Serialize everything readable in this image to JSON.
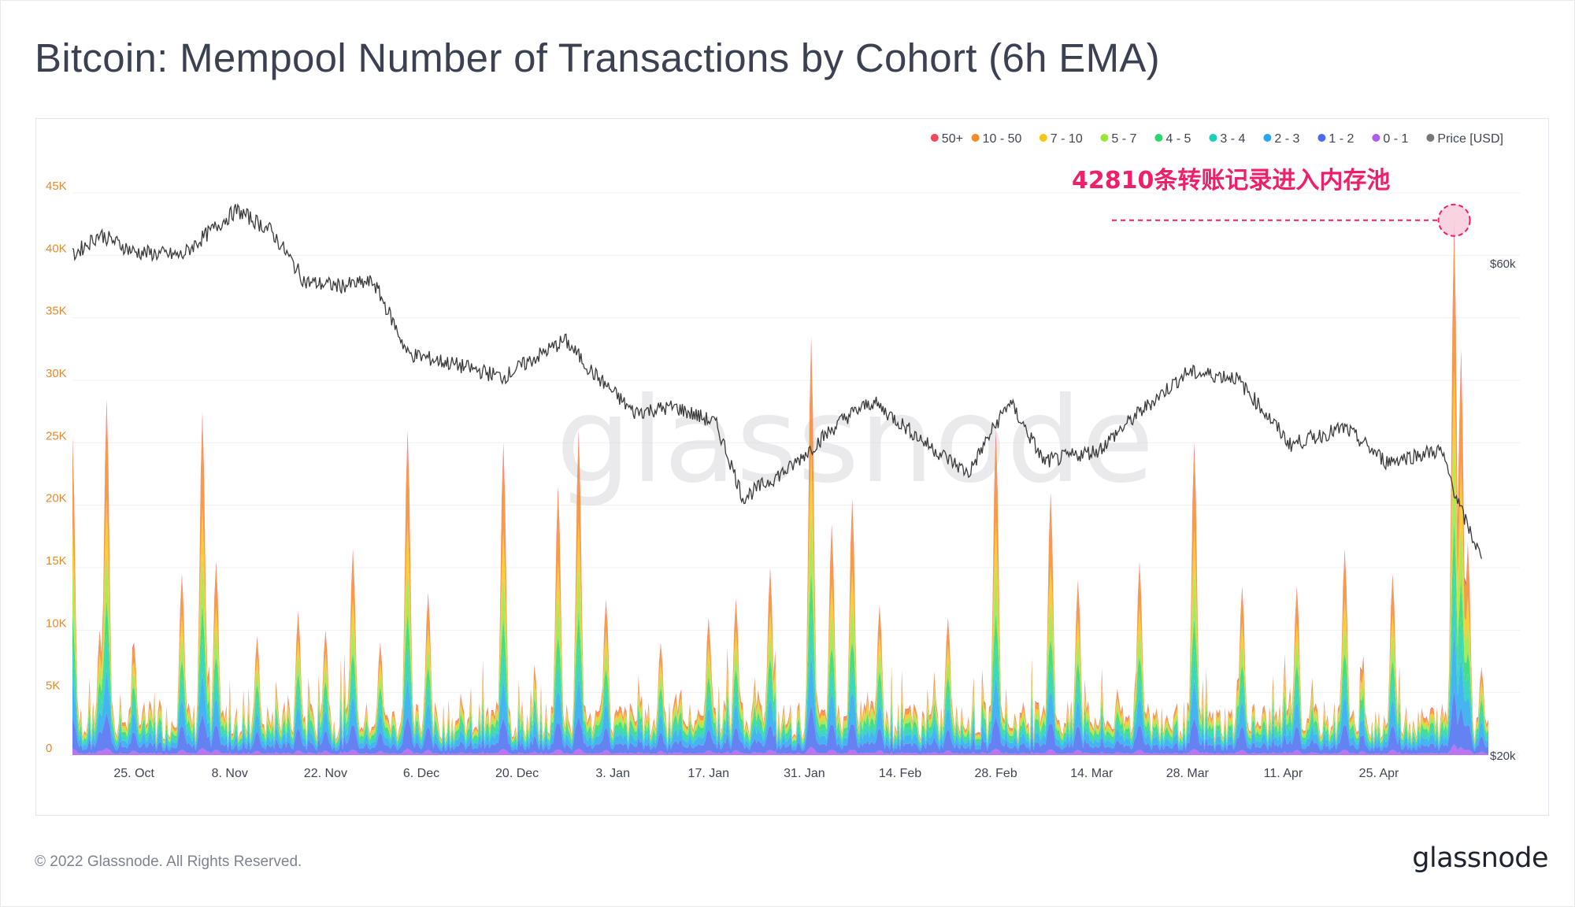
{
  "title": "Bitcoin: Mempool Number of Transactions by Cohort (6h EMA)",
  "footer": {
    "copyright": "© 2022 Glassnode. All Rights Reserved.",
    "logo": "glassnode"
  },
  "watermark": "glassnode",
  "chart_data": {
    "type": "area",
    "title": "Bitcoin: Mempool Number of Transactions by Cohort (6h EMA)",
    "legend_position": "top-right",
    "grid": true,
    "legend": [
      {
        "name": "50+",
        "color": "#f04a5a"
      },
      {
        "name": "10 - 50",
        "color": "#f58a2a"
      },
      {
        "name": "7 - 10",
        "color": "#f5c518"
      },
      {
        "name": "5 - 7",
        "color": "#9be53a"
      },
      {
        "name": "4 - 5",
        "color": "#27d86b"
      },
      {
        "name": "3 - 4",
        "color": "#1ccfb4"
      },
      {
        "name": "2 - 3",
        "color": "#25a8f0"
      },
      {
        "name": "1 - 2",
        "color": "#4a6cf0"
      },
      {
        "name": "0 - 1",
        "color": "#b05cf0"
      },
      {
        "name": "Price [USD]",
        "color": "#777777"
      }
    ],
    "y_left": {
      "ticks": [
        "0",
        "5K",
        "10K",
        "15K",
        "20K",
        "25K",
        "30K",
        "35K",
        "40K",
        "45K"
      ],
      "range": [
        0,
        45000
      ]
    },
    "y_right": {
      "ticks": [
        "$20k",
        "$60k"
      ],
      "range": [
        20000,
        60000
      ],
      "scale": "log"
    },
    "x_ticks": [
      "25. Oct",
      "8. Nov",
      "22. Nov",
      "6. Dec",
      "20. Dec",
      "3. Jan",
      "17. Jan",
      "31. Jan",
      "14. Feb",
      "28. Feb",
      "14. Mar",
      "28. Mar",
      "11. Apr",
      "25. Apr"
    ],
    "x_range": [
      "2021-10-16",
      "2022-05-11"
    ],
    "cohort_spikes": [
      {
        "date": "2021-10-16",
        "total": 25500
      },
      {
        "date": "2021-10-20",
        "total": 10000
      },
      {
        "date": "2021-10-21",
        "total": 28500
      },
      {
        "date": "2021-10-25",
        "total": 9000
      },
      {
        "date": "2021-11-01",
        "total": 14500
      },
      {
        "date": "2021-11-04",
        "total": 27500
      },
      {
        "date": "2021-11-06",
        "total": 15500
      },
      {
        "date": "2021-11-12",
        "total": 9500
      },
      {
        "date": "2021-11-18",
        "total": 11500
      },
      {
        "date": "2021-11-22",
        "total": 10000
      },
      {
        "date": "2021-11-26",
        "total": 16500
      },
      {
        "date": "2021-11-30",
        "total": 9000
      },
      {
        "date": "2021-12-04",
        "total": 26000
      },
      {
        "date": "2021-12-07",
        "total": 13000
      },
      {
        "date": "2021-12-18",
        "total": 25000
      },
      {
        "date": "2021-12-26",
        "total": 21500
      },
      {
        "date": "2021-12-29",
        "total": 26000
      },
      {
        "date": "2022-01-02",
        "total": 12500
      },
      {
        "date": "2022-01-10",
        "total": 9000
      },
      {
        "date": "2022-01-17",
        "total": 11000
      },
      {
        "date": "2022-01-21",
        "total": 12500
      },
      {
        "date": "2022-01-26",
        "total": 15000
      },
      {
        "date": "2022-02-01",
        "total": 33500
      },
      {
        "date": "2022-02-04",
        "total": 18500
      },
      {
        "date": "2022-02-07",
        "total": 20500
      },
      {
        "date": "2022-02-11",
        "total": 12000
      },
      {
        "date": "2022-02-21",
        "total": 11000
      },
      {
        "date": "2022-02-28",
        "total": 26000
      },
      {
        "date": "2022-03-08",
        "total": 21000
      },
      {
        "date": "2022-03-12",
        "total": 14000
      },
      {
        "date": "2022-03-21",
        "total": 15500
      },
      {
        "date": "2022-03-29",
        "total": 25000
      },
      {
        "date": "2022-04-05",
        "total": 13500
      },
      {
        "date": "2022-04-13",
        "total": 13500
      },
      {
        "date": "2022-04-20",
        "total": 16500
      },
      {
        "date": "2022-04-27",
        "total": 14500
      },
      {
        "date": "2022-05-06",
        "total": 42810
      },
      {
        "date": "2022-05-07",
        "total": 32500
      },
      {
        "date": "2022-05-08",
        "total": 17000
      },
      {
        "date": "2022-05-10",
        "total": 7000
      }
    ],
    "price_series": [
      {
        "date": "2021-10-16",
        "price": 61000
      },
      {
        "date": "2021-10-20",
        "price": 64000
      },
      {
        "date": "2021-10-25",
        "price": 61500
      },
      {
        "date": "2021-11-01",
        "price": 61000
      },
      {
        "date": "2021-11-09",
        "price": 67500
      },
      {
        "date": "2021-11-14",
        "price": 64500
      },
      {
        "date": "2021-11-19",
        "price": 57500
      },
      {
        "date": "2021-11-24",
        "price": 57000
      },
      {
        "date": "2021-11-29",
        "price": 57500
      },
      {
        "date": "2021-12-04",
        "price": 49000
      },
      {
        "date": "2021-12-10",
        "price": 48000
      },
      {
        "date": "2021-12-18",
        "price": 46500
      },
      {
        "date": "2021-12-27",
        "price": 50500
      },
      {
        "date": "2021-12-31",
        "price": 47000
      },
      {
        "date": "2022-01-06",
        "price": 43000
      },
      {
        "date": "2022-01-12",
        "price": 43500
      },
      {
        "date": "2022-01-18",
        "price": 42000
      },
      {
        "date": "2022-01-22",
        "price": 35500
      },
      {
        "date": "2022-01-29",
        "price": 38000
      },
      {
        "date": "2022-02-06",
        "price": 42500
      },
      {
        "date": "2022-02-10",
        "price": 44000
      },
      {
        "date": "2022-02-18",
        "price": 40000
      },
      {
        "date": "2022-02-24",
        "price": 37500
      },
      {
        "date": "2022-03-02",
        "price": 44000
      },
      {
        "date": "2022-03-07",
        "price": 38500
      },
      {
        "date": "2022-03-15",
        "price": 39500
      },
      {
        "date": "2022-03-28",
        "price": 47000
      },
      {
        "date": "2022-04-04",
        "price": 46500
      },
      {
        "date": "2022-04-12",
        "price": 40000
      },
      {
        "date": "2022-04-20",
        "price": 41500
      },
      {
        "date": "2022-04-26",
        "price": 38500
      },
      {
        "date": "2022-05-04",
        "price": 39500
      },
      {
        "date": "2022-05-07",
        "price": 34500
      },
      {
        "date": "2022-05-10",
        "price": 31000
      }
    ],
    "annotation": {
      "text": "42810条转账记录进入内存池",
      "date": "2022-05-06",
      "value": 42810
    }
  }
}
